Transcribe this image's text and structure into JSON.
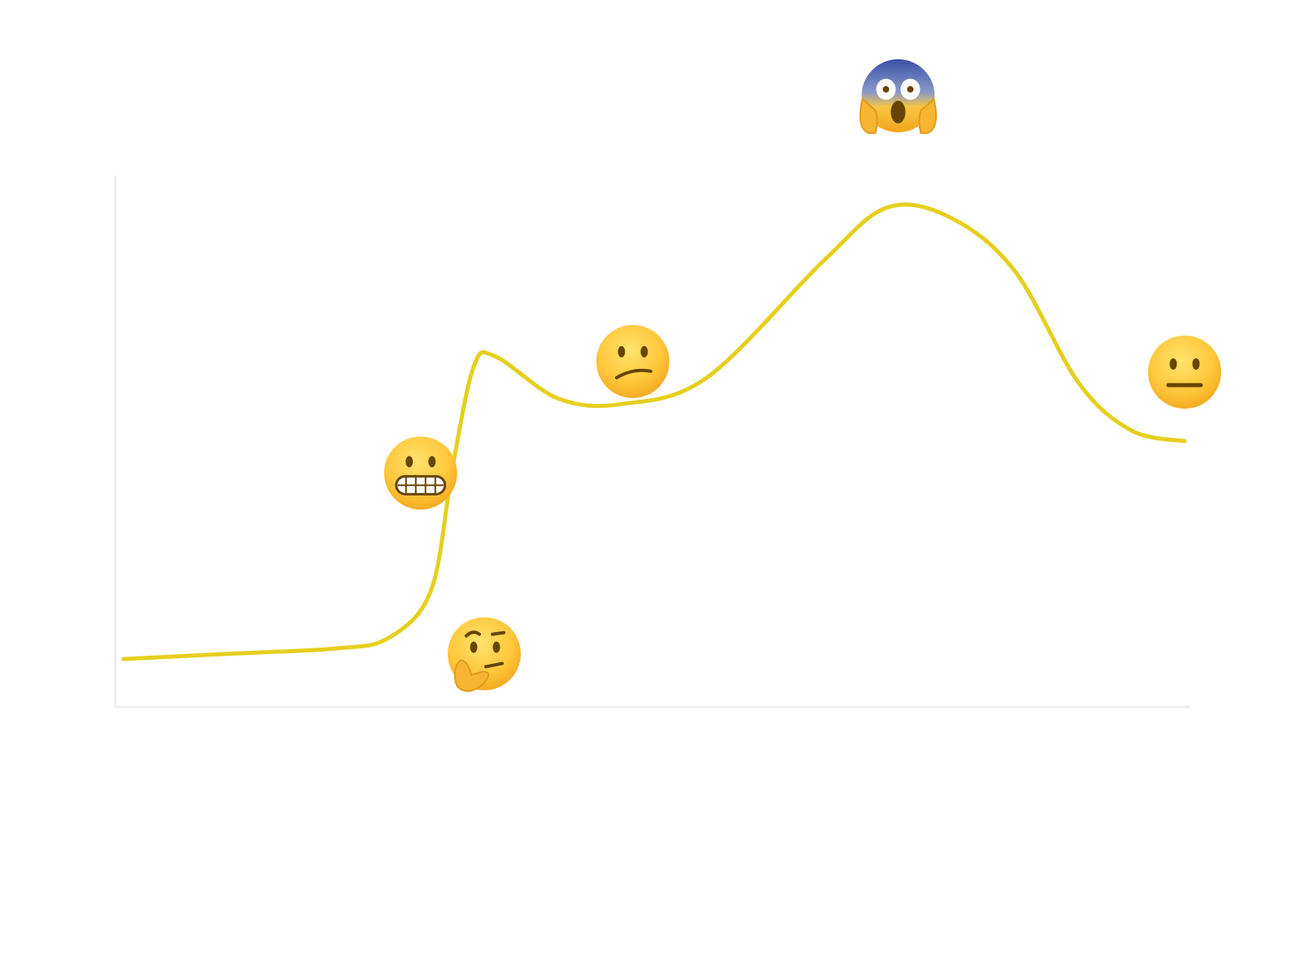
{
  "chart_data": {
    "type": "line",
    "title": "",
    "xlabel": "",
    "ylabel": "",
    "grid": false,
    "legend": "none",
    "xlim": [
      0,
      100
    ],
    "ylim": [
      0,
      100
    ],
    "series": [
      {
        "color": "#E6CF1E",
        "points": [
          {
            "x": 0,
            "y": 9
          },
          {
            "x": 10,
            "y": 10
          },
          {
            "x": 20,
            "y": 11
          },
          {
            "x": 25,
            "y": 13
          },
          {
            "x": 29,
            "y": 22
          },
          {
            "x": 31,
            "y": 45
          },
          {
            "x": 33,
            "y": 64
          },
          {
            "x": 35,
            "y": 66
          },
          {
            "x": 41,
            "y": 58
          },
          {
            "x": 47,
            "y": 57
          },
          {
            "x": 55,
            "y": 62
          },
          {
            "x": 66,
            "y": 84
          },
          {
            "x": 72,
            "y": 94
          },
          {
            "x": 78,
            "y": 92
          },
          {
            "x": 84,
            "y": 82
          },
          {
            "x": 90,
            "y": 61
          },
          {
            "x": 95,
            "y": 52
          },
          {
            "x": 100,
            "y": 50
          }
        ]
      }
    ],
    "annotations": [
      {
        "icon": "thinking-face-icon",
        "x": 34,
        "y": 10
      },
      {
        "icon": "grimacing-face-icon",
        "x": 28,
        "y": 44
      },
      {
        "icon": "confused-face-icon",
        "x": 48,
        "y": 65
      },
      {
        "icon": "screaming-face-icon",
        "x": 73,
        "y": 115
      },
      {
        "icon": "neutral-face-icon",
        "x": 100,
        "y": 63
      }
    ]
  },
  "colors": {
    "curve": "#E6CF1E",
    "axis": "#EEEEEE",
    "face": "#FFC83D"
  }
}
